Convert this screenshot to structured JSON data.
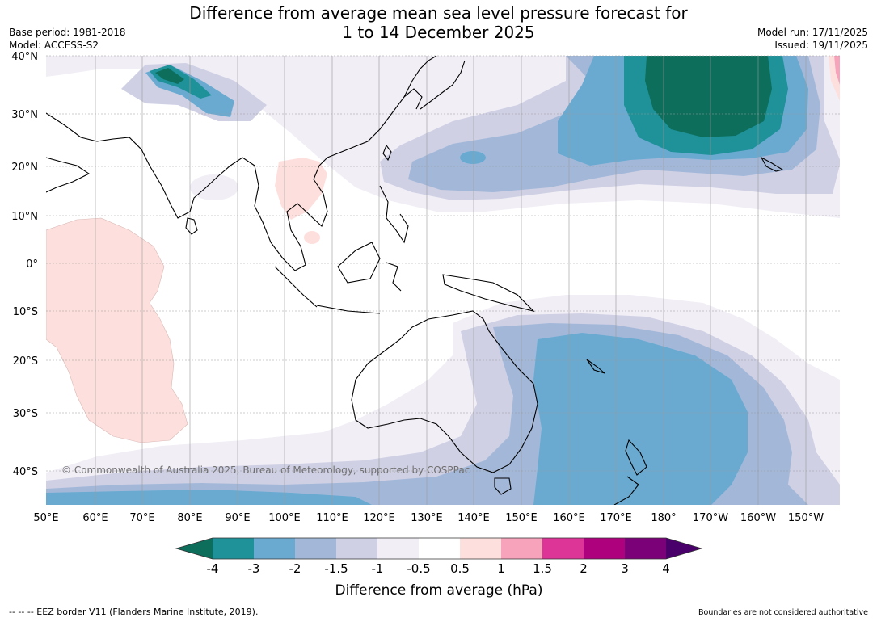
{
  "header": {
    "title_line1": "Difference from average mean sea level pressure forecast for",
    "title_line2": "1 to 14 December 2025",
    "base_period": "Base period: 1981-2018",
    "model": "Model: ACCESS-S2",
    "model_run": "Model run: 17/11/2025",
    "issued": "Issued: 19/11/2025"
  },
  "map": {
    "copyright": "© Commonwealth of Australia 2025, Bureau of Meteorology, supported by COSPPac",
    "lat_labels": [
      "40°N",
      "30°N",
      "20°N",
      "10°N",
      "0°",
      "10°S",
      "20°S",
      "30°S",
      "40°S"
    ],
    "lon_labels": [
      "50°E",
      "60°E",
      "70°E",
      "80°E",
      "90°E",
      "100°E",
      "110°E",
      "120°E",
      "130°E",
      "140°E",
      "150°E",
      "160°E",
      "170°E",
      "180°",
      "170°W",
      "160°W",
      "150°W"
    ],
    "lat_values": [
      40,
      30,
      20,
      10,
      0,
      -10,
      -20,
      -30,
      -40
    ],
    "lon_values": [
      50,
      60,
      70,
      80,
      90,
      100,
      110,
      120,
      130,
      140,
      150,
      160,
      170,
      180,
      190,
      200,
      210
    ]
  },
  "legend": {
    "tick_labels": [
      "-4",
      "-3",
      "-2",
      "-1.5",
      "-1",
      "-0.5",
      "0.5",
      "1",
      "1.5",
      "2",
      "3",
      "4"
    ],
    "title": "Difference from average (hPa)",
    "colors": [
      "#0d6e5c",
      "#1f9199",
      "#6aaad1",
      "#a3b8d9",
      "#cfd0e4",
      "#f1eef6",
      "#ffffff",
      "#fde0dd",
      "#f7a3bb",
      "#dd3497",
      "#ae017e",
      "#7a0177",
      "#49006a"
    ]
  },
  "footer": {
    "eez_note": "--  --  -- EEZ border V11 (Flanders Marine Institute, 2019).",
    "boundary_note": "Boundaries are not considered authoritative"
  }
}
